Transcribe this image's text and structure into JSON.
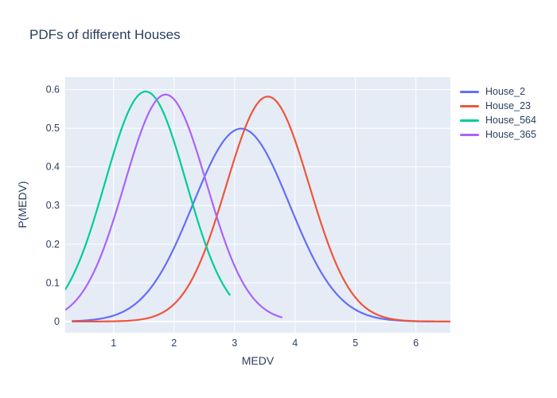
{
  "figure": {
    "background": "#ffffff",
    "text_color": "#2a3f5f"
  },
  "chart_data": {
    "type": "line",
    "title": "PDFs of different Houses",
    "xlabel": "MEDV",
    "ylabel": "P(MEDV)",
    "xlim": [
      0.2,
      6.57
    ],
    "ylim": [
      -0.029,
      0.632
    ],
    "x_ticks": [
      1,
      2,
      3,
      4,
      5,
      6
    ],
    "y_ticks": [
      0,
      0.1,
      0.2,
      0.3,
      0.4,
      0.5,
      0.6
    ],
    "grid": true,
    "panel_bg": "#e5ecf6",
    "grid_color": "#ffffff",
    "zeroline_color": "#ffffff",
    "tick_label_color": "#2a3f5f",
    "legend_position": "right",
    "series": [
      {
        "name": "House_2",
        "color": "#636efa",
        "distribution": "normal",
        "mean": 3.11,
        "std": 0.8,
        "peak": 0.499,
        "x_start": 0.32,
        "x_end": 6.3,
        "key_points": {
          "start": [
            0.32,
            0.001
          ],
          "peak": [
            3.11,
            0.499
          ],
          "end": [
            6.3,
            0.0
          ]
        }
      },
      {
        "name": "House_23",
        "color": "#ef553b",
        "distribution": "normal",
        "mean": 3.55,
        "std": 0.685,
        "peak": 0.582,
        "x_start": 0.32,
        "x_end": 6.57,
        "key_points": {
          "start": [
            0.32,
            0.0
          ],
          "peak": [
            3.55,
            0.582
          ],
          "end": [
            6.57,
            0.0
          ]
        }
      },
      {
        "name": "House_564",
        "color": "#00cc96",
        "distribution": "normal",
        "mean": 1.53,
        "std": 0.67,
        "peak": 0.595,
        "x_start": 0.2,
        "x_end": 2.92,
        "key_points": {
          "start": [
            0.2,
            0.082
          ],
          "peak": [
            1.53,
            0.595
          ],
          "end": [
            2.92,
            0.066
          ]
        }
      },
      {
        "name": "House_365",
        "color": "#ab63fa",
        "distribution": "normal",
        "mean": 1.86,
        "std": 0.68,
        "peak": 0.587,
        "x_start": 0.21,
        "x_end": 3.78,
        "key_points": {
          "start": [
            0.21,
            0.03
          ],
          "peak": [
            1.86,
            0.587
          ],
          "end": [
            3.78,
            0.011
          ]
        }
      }
    ]
  }
}
